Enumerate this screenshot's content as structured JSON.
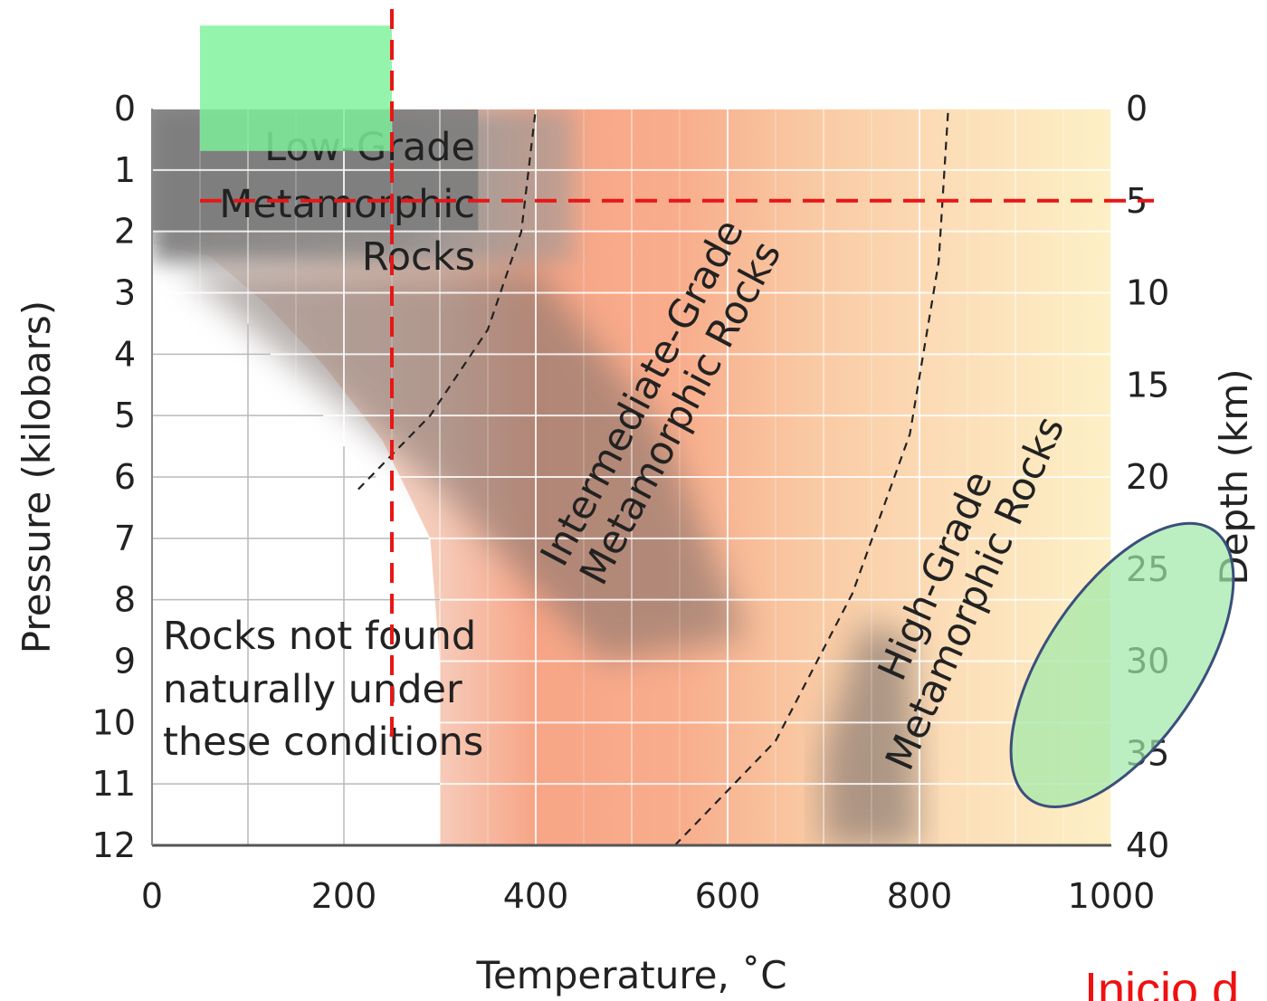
{
  "chart_data": {
    "type": "area",
    "xlabel": "Temperature, ˚C",
    "ylabel": "Pressure (kilobars)",
    "y2label": "Depth (km)",
    "xlim": [
      0,
      1000
    ],
    "ylim": [
      0,
      12
    ],
    "y2lim": [
      0,
      40
    ],
    "x_ticks": [
      "0",
      "200",
      "400",
      "600",
      "800",
      "1000"
    ],
    "x_tick_values": [
      0,
      200,
      400,
      600,
      800,
      1000
    ],
    "y_ticks": [
      "0",
      "1",
      "2",
      "3",
      "4",
      "5",
      "6",
      "7",
      "8",
      "9",
      "10",
      "11",
      "12"
    ],
    "y_tick_values": [
      0,
      1,
      2,
      3,
      4,
      5,
      6,
      7,
      8,
      9,
      10,
      11,
      12
    ],
    "y2_ticks": [
      "0",
      "5",
      "10",
      "15",
      "20",
      "25",
      "30",
      "35",
      "40"
    ],
    "y2_tick_values": [
      0,
      5,
      10,
      15,
      20,
      25,
      30,
      35,
      40
    ],
    "grid": true,
    "region_labels": {
      "low_grade": [
        "Low-Grade",
        "Metamorphic",
        "Rocks"
      ],
      "intermediate_grade": [
        "Intermediate-Grade",
        "Metamorphic Rocks"
      ],
      "high_grade": [
        "High-Grade",
        "Metamorphic Rocks"
      ],
      "not_found": [
        "Rocks not found",
        "naturally under",
        "these conditions"
      ]
    },
    "boundaries": [
      {
        "points": [
          [
            215,
            6.2
          ],
          [
            290,
            5.0
          ],
          [
            350,
            3.6
          ],
          [
            385,
            2.0
          ],
          [
            400,
            0
          ]
        ]
      },
      {
        "points": [
          [
            545,
            12
          ],
          [
            650,
            10.3
          ],
          [
            730,
            7.9
          ],
          [
            790,
            5.3
          ],
          [
            820,
            2.5
          ],
          [
            830,
            0
          ]
        ]
      }
    ],
    "annotations": {
      "reference_temperature": 250,
      "reference_depth_km": 5,
      "highlight_rectangle": {
        "x": [
          50,
          250
        ],
        "depth_km": [
          -5,
          2.3
        ]
      },
      "highlight_ellipse": {
        "center_temperature": 1000,
        "center_depth_km": 31,
        "temperature_radius": 83,
        "depth_radius_km": 15,
        "rotation_deg": 34
      }
    },
    "note": "Inicio d"
  },
  "colors": {
    "gray": "#6e6e6e",
    "low_red": "#f7a080",
    "high_yellow": "#fdeec0",
    "dash_red": "#e81616",
    "green_fill": "#7df29a",
    "ellipse_fill": "#9ee8a6",
    "ellipse_stroke": "#3b4f7c",
    "note_red": "#ee1111"
  }
}
